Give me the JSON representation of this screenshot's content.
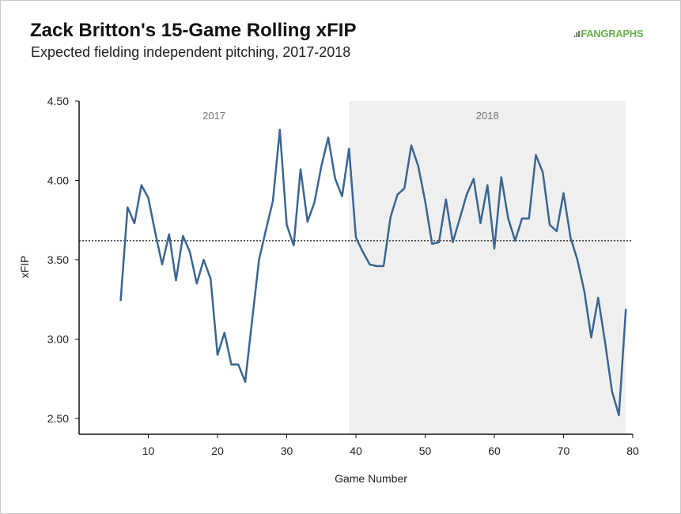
{
  "header": {
    "title": "Zack Britton's 15-Game Rolling xFIP",
    "subtitle": "Expected fielding independent pitching, 2017-2018",
    "logo_text": "FANGRAPHS",
    "logo_icon": "fangraphs-bars-icon"
  },
  "colors": {
    "line": "#3a6691",
    "shade": "#efefef",
    "reference": "#111111",
    "logo": "#6ab04c"
  },
  "chart_data": {
    "type": "line",
    "title": "Zack Britton's 15-Game Rolling xFIP",
    "subtitle": "Expected fielding independent pitching, 2017-2018",
    "xlabel": "Game Number",
    "ylabel": "xFIP",
    "xlim": [
      0,
      80
    ],
    "ylim": [
      2.4,
      4.5
    ],
    "x_ticks": [
      10,
      20,
      30,
      40,
      50,
      60,
      70,
      80
    ],
    "y_ticks": [
      2.5,
      3.0,
      3.5,
      4.0,
      4.5
    ],
    "y_tick_labels": [
      "2.50",
      "3.00",
      "3.50",
      "4.00",
      "4.50"
    ],
    "grid": false,
    "reference_line": {
      "y": 3.62,
      "style": "dotted"
    },
    "regions": [
      {
        "label": "2017",
        "x_start": 0,
        "x_end": 39,
        "shaded": false
      },
      {
        "label": "2018",
        "x_start": 39,
        "x_end": 79,
        "shaded": true
      }
    ],
    "series": [
      {
        "x": [
          6,
          7,
          8,
          9,
          10,
          11,
          12,
          13,
          14,
          15,
          16,
          17,
          18,
          19,
          20,
          21,
          22,
          23,
          24,
          25,
          26,
          27,
          28,
          29,
          30,
          31,
          32,
          33,
          34,
          35,
          36,
          37,
          38,
          39,
          40,
          41,
          42,
          43,
          44,
          45,
          46,
          47,
          48,
          49,
          50,
          51,
          52,
          53,
          54,
          55,
          56,
          57,
          58,
          59,
          60,
          61,
          62,
          63,
          64,
          65,
          66,
          67,
          68,
          69,
          70,
          71,
          72,
          73,
          74,
          75,
          76,
          77,
          78,
          79
        ],
        "values": [
          3.24,
          3.83,
          3.73,
          3.97,
          3.89,
          3.67,
          3.47,
          3.66,
          3.37,
          3.65,
          3.55,
          3.35,
          3.5,
          3.38,
          2.9,
          3.04,
          2.84,
          2.84,
          2.73,
          3.12,
          3.5,
          3.69,
          3.87,
          4.32,
          3.72,
          3.59,
          4.07,
          3.74,
          3.86,
          4.09,
          4.27,
          4.01,
          3.9,
          4.2,
          3.64,
          3.55,
          3.47,
          3.46,
          3.46,
          3.77,
          3.91,
          3.95,
          4.22,
          4.09,
          3.87,
          3.6,
          3.61,
          3.88,
          3.61,
          3.76,
          3.91,
          4.01,
          3.73,
          3.97,
          3.57,
          4.02,
          3.76,
          3.62,
          3.76,
          3.76,
          4.16,
          4.05,
          3.72,
          3.68,
          3.92,
          3.64,
          3.5,
          3.3,
          3.01,
          3.26,
          2.98,
          2.67,
          2.52,
          3.19
        ]
      }
    ]
  }
}
